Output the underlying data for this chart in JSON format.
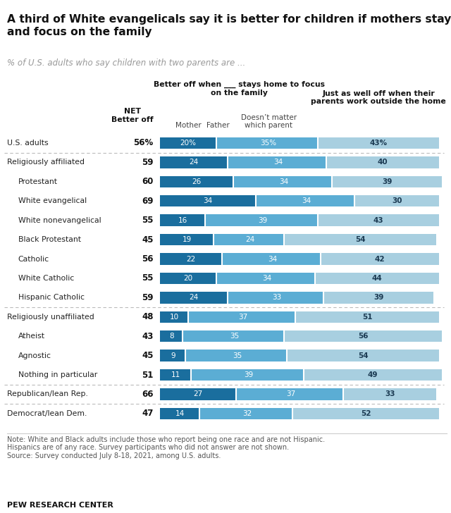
{
  "title": "A third of White evangelicals say it is better for children if mothers stay home\nand focus on the family",
  "subtitle": "% of U.S. adults who say children with two parents are ...",
  "col_header_better": "Better off when ___ stays home to focus\non the family",
  "col_header_mother": "Mother",
  "col_header_father": "Father",
  "col_header_doesnt": "Doesn’t matter\nwhich parent",
  "col_header_just": "Just as well off when their\nparents work outside the home",
  "col_net": "NET\nBetter off",
  "note": "Note: White and Black adults include those who report being one race and are not Hispanic.\nHispanics are of any race. Survey participants who did not answer are not shown.\nSource: Survey conducted July 8-18, 2021, among U.S. adults.",
  "footer": "PEW RESEARCH CENTER",
  "categories": [
    "U.S. adults",
    "Religiously affiliated",
    "Protestant",
    "White evangelical",
    "White nonevangelical",
    "Black Protestant",
    "Catholic",
    "White Catholic",
    "Hispanic Catholic",
    "Religiously unaffiliated",
    "Atheist",
    "Agnostic",
    "Nothing in particular",
    "Republican/lean Rep.",
    "Democrat/lean Dem."
  ],
  "net_pct": [
    "56%",
    "59",
    "60",
    "69",
    "55",
    "45",
    "56",
    "55",
    "59",
    "48",
    "43",
    "45",
    "51",
    "66",
    "47"
  ],
  "mother": [
    20,
    24,
    26,
    34,
    16,
    19,
    22,
    20,
    24,
    10,
    8,
    9,
    11,
    27,
    14
  ],
  "father": [
    1,
    1,
    1,
    1,
    1,
    1,
    1,
    1,
    1,
    1,
    1,
    1,
    1,
    1,
    1
  ],
  "doesnt": [
    35,
    34,
    34,
    34,
    39,
    24,
    34,
    34,
    33,
    37,
    35,
    35,
    39,
    37,
    32
  ],
  "just": [
    43,
    40,
    39,
    30,
    43,
    54,
    42,
    44,
    39,
    51,
    56,
    54,
    49,
    33,
    52
  ],
  "color_mother": "#1a6e9e",
  "color_father": "#5badd4",
  "color_doesnt": "#5badd4",
  "color_just": "#a8cfe0",
  "color_father_sep": "#ffffff",
  "indent_categories": [
    false,
    false,
    true,
    true,
    true,
    true,
    true,
    true,
    true,
    false,
    true,
    true,
    true,
    false,
    false
  ],
  "separator_after": [
    0,
    8,
    12,
    13
  ],
  "background_color": "#ffffff"
}
